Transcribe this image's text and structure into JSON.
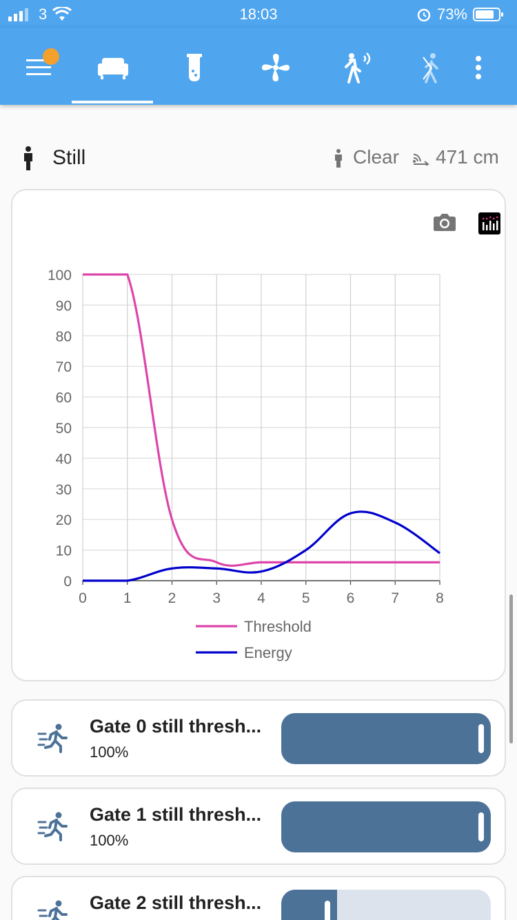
{
  "status_bar": {
    "carrier": "3",
    "time": "18:03",
    "battery": "73%",
    "icons": [
      "signal-icon",
      "wifi-icon",
      "alarm-icon",
      "battery-icon"
    ]
  },
  "toolbar": {
    "tabs": [
      {
        "name": "menu",
        "icon": "menu-icon"
      },
      {
        "name": "living-room",
        "icon": "sofa-icon",
        "active": true
      },
      {
        "name": "lab",
        "icon": "test-tube-icon"
      },
      {
        "name": "fan",
        "icon": "fan-icon"
      },
      {
        "name": "motion",
        "icon": "motion-sensor-icon"
      },
      {
        "name": "walk",
        "icon": "walk-icon"
      },
      {
        "name": "more",
        "icon": "more-vertical-icon"
      }
    ],
    "accent": "#4fa5ee",
    "badge_color": "#f4a02d"
  },
  "header": {
    "state": "Still",
    "presence": "Clear",
    "distance": "471 cm"
  },
  "chart_data": {
    "type": "line",
    "x_ticks": [
      "0",
      "1",
      "2",
      "3",
      "4",
      "5",
      "6",
      "7",
      "8"
    ],
    "y_ticks": [
      "0",
      "10",
      "20",
      "30",
      "40",
      "50",
      "60",
      "70",
      "80",
      "90",
      "100"
    ],
    "xlim": [
      0,
      8
    ],
    "ylim": [
      0,
      100
    ],
    "grid": true,
    "legend_position": "bottom-center",
    "series": [
      {
        "name": "Threshold",
        "color": "#dd44aa",
        "x": [
          0,
          1,
          2,
          3,
          4,
          5,
          6,
          7,
          8
        ],
        "values": [
          100,
          100,
          20,
          6,
          6,
          6,
          6,
          6,
          6
        ]
      },
      {
        "name": "Energy",
        "color": "#0000cc",
        "x": [
          0,
          1,
          2,
          3,
          4,
          5,
          6,
          7,
          8
        ],
        "values": [
          0,
          0,
          4,
          4,
          3,
          10,
          22,
          19,
          9
        ]
      }
    ]
  },
  "gates": [
    {
      "name": "Gate 0 still thresh...",
      "value": "100%",
      "level": 1.0
    },
    {
      "name": "Gate 1 still thresh...",
      "value": "100%",
      "level": 1.0
    },
    {
      "name": "Gate 2 still thresh...",
      "value": "",
      "level": 0.2
    }
  ],
  "slider_colors": {
    "fill": "#4d7298",
    "track": "#dde3ec"
  }
}
